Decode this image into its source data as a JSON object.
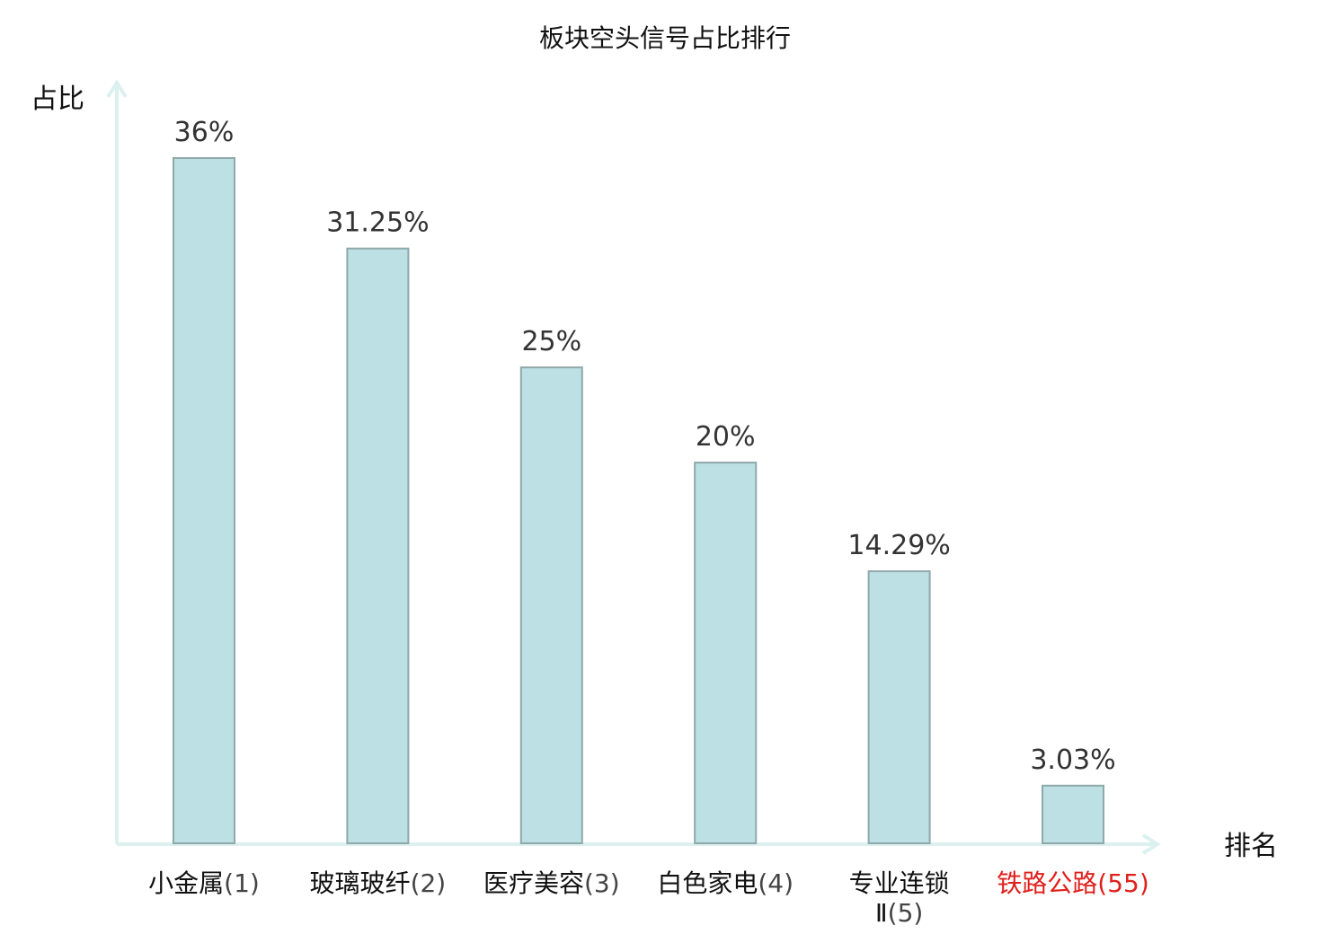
{
  "chart_data": {
    "type": "bar",
    "title": "板块空头信号占比排行",
    "ylabel": "占比",
    "xlabel": "排名",
    "ylim": [
      0,
      40
    ],
    "grid": false,
    "categories": [
      {
        "name": "小金属",
        "rank": "(1)",
        "value": 36,
        "label": "36%",
        "highlight": false
      },
      {
        "name": "玻璃玻纤",
        "rank": "(2)",
        "value": 31.25,
        "label": "31.25%",
        "highlight": false
      },
      {
        "name": "医疗美容",
        "rank": "(3)",
        "value": 25,
        "label": "25%",
        "highlight": false
      },
      {
        "name": "白色家电",
        "rank": "(4)",
        "value": 20,
        "label": "20%",
        "highlight": false
      },
      {
        "name": "专业连锁",
        "name_line2": "Ⅱ",
        "rank": "(5)",
        "value": 14.29,
        "label": "14.29%",
        "highlight": false
      },
      {
        "name": "铁路公路",
        "rank": "(55)",
        "value": 3.03,
        "label": "3.03%",
        "highlight": true
      }
    ],
    "colors": {
      "bar_fill": "#bce0e3",
      "bar_stroke": "#8fa8aa",
      "axis": "#dcf1ef",
      "highlight": "#e0201c"
    }
  }
}
